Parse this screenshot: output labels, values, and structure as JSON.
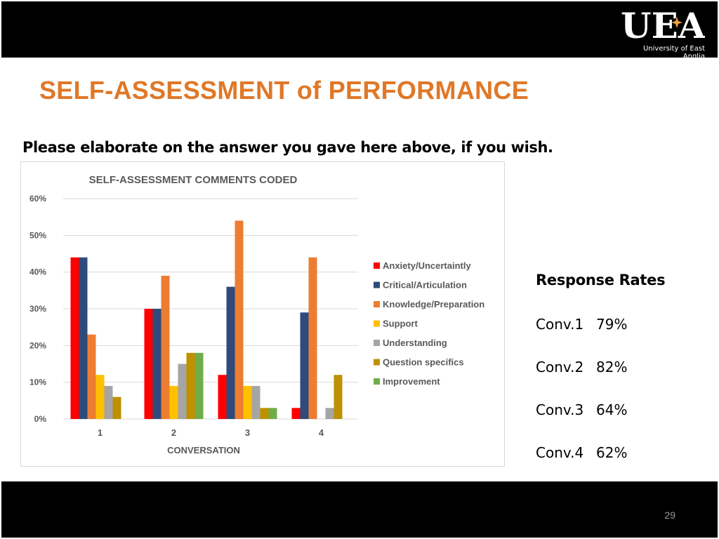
{
  "header": {
    "logo_text": "UEA",
    "logo_caption": "University of East Anglia"
  },
  "slide": {
    "title": "SELF-ASSESSMENT of PERFORMANCE",
    "subtitle": "Please elaborate on the answer you gave here above, if you wish.",
    "page_number": "29"
  },
  "response_rates": {
    "title": "Response Rates",
    "rows": [
      {
        "conv": "Conv.1",
        "rate": "79%"
      },
      {
        "conv": "Conv.2",
        "rate": "82%"
      },
      {
        "conv": "Conv.3",
        "rate": "64%"
      },
      {
        "conv": "Conv.4",
        "rate": "62%"
      }
    ]
  },
  "colors": {
    "title_orange": "#e07828",
    "bar_black": "#000000"
  },
  "chart_data": {
    "type": "bar",
    "title": "SELF-ASSESSMENT COMMENTS CODED",
    "xlabel": "CONVERSATION",
    "ylabel": "",
    "categories": [
      "1",
      "2",
      "3",
      "4"
    ],
    "ylim": [
      0,
      60
    ],
    "yticks": [
      "0%",
      "10%",
      "20%",
      "30%",
      "40%",
      "50%",
      "60%"
    ],
    "grid": true,
    "legend_position": "right",
    "series": [
      {
        "name": "Anxiety/Uncertaintly",
        "color": "#ff0000",
        "values": [
          44,
          30,
          12,
          3
        ]
      },
      {
        "name": "Critical/Articulation",
        "color": "#2f4b7c",
        "values": [
          44,
          30,
          36,
          29
        ]
      },
      {
        "name": "Knowledge/Preparation",
        "color": "#ed7d31",
        "values": [
          23,
          39,
          54,
          44
        ]
      },
      {
        "name": "Support",
        "color": "#ffc000",
        "values": [
          12,
          9,
          9,
          0
        ]
      },
      {
        "name": "Understanding",
        "color": "#a5a5a5",
        "values": [
          9,
          15,
          9,
          3
        ]
      },
      {
        "name": "Question specifics",
        "color": "#bf9000",
        "values": [
          6,
          18,
          3,
          12
        ]
      },
      {
        "name": "Improvement",
        "color": "#70ad47",
        "values": [
          0,
          18,
          3,
          0
        ]
      }
    ]
  }
}
